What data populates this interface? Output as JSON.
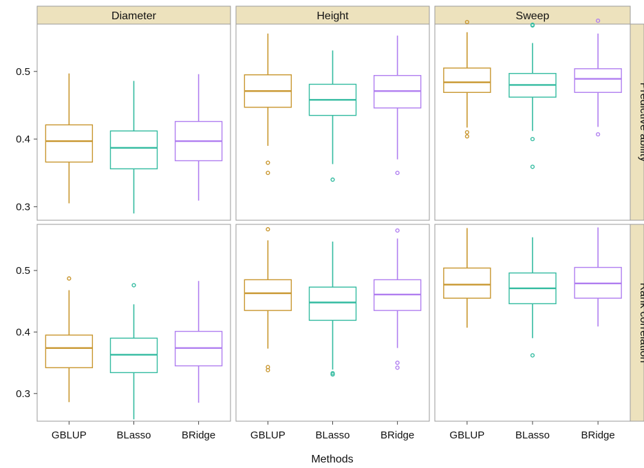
{
  "chart_data": {
    "type": "boxplot",
    "xlabel": "Methods",
    "ylabel": "",
    "categories": [
      "GBLUP",
      "BLasso",
      "BRidge"
    ],
    "colors": {
      "GBLUP": "#c8962e",
      "BLasso": "#33bba0",
      "BRidge": "#b07ef0"
    },
    "columns": [
      "Diameter",
      "Height",
      "Sweep"
    ],
    "rows": [
      "Predictive ability",
      "Rank correlation"
    ],
    "rows_config": [
      {
        "ylim": [
          0.28,
          0.57
        ],
        "yticks": [
          "0.3",
          "0.4",
          "0.5"
        ]
      },
      {
        "ylim": [
          0.255,
          0.575
        ],
        "yticks": [
          "0.3",
          "0.4",
          "0.5"
        ]
      }
    ],
    "panels": [
      {
        "row": "Predictive ability",
        "column": "Diameter",
        "boxes": [
          {
            "method": "GBLUP",
            "min": 0.305,
            "q1": 0.366,
            "median": 0.397,
            "q3": 0.421,
            "max": 0.497,
            "outliers": []
          },
          {
            "method": "BLasso",
            "min": 0.29,
            "q1": 0.356,
            "median": 0.387,
            "q3": 0.412,
            "max": 0.486,
            "outliers": []
          },
          {
            "method": "BRidge",
            "min": 0.309,
            "q1": 0.368,
            "median": 0.397,
            "q3": 0.426,
            "max": 0.496,
            "outliers": []
          }
        ]
      },
      {
        "row": "Predictive ability",
        "column": "Height",
        "boxes": [
          {
            "method": "GBLUP",
            "min": 0.39,
            "q1": 0.447,
            "median": 0.471,
            "q3": 0.495,
            "max": 0.556,
            "outliers": [
              0.365,
              0.35
            ]
          },
          {
            "method": "BLasso",
            "min": 0.363,
            "q1": 0.435,
            "median": 0.458,
            "q3": 0.481,
            "max": 0.531,
            "outliers": [
              0.34
            ]
          },
          {
            "method": "BRidge",
            "min": 0.37,
            "q1": 0.446,
            "median": 0.471,
            "q3": 0.494,
            "max": 0.553,
            "outliers": [
              0.35
            ]
          }
        ]
      },
      {
        "row": "Predictive ability",
        "column": "Sweep",
        "boxes": [
          {
            "method": "GBLUP",
            "min": 0.417,
            "q1": 0.469,
            "median": 0.484,
            "q3": 0.505,
            "max": 0.558,
            "outliers": [
              0.573,
              0.41,
              0.404
            ]
          },
          {
            "method": "BLasso",
            "min": 0.412,
            "q1": 0.462,
            "median": 0.48,
            "q3": 0.497,
            "max": 0.542,
            "outliers": [
              0.569,
              0.568,
              0.4,
              0.359
            ]
          },
          {
            "method": "BRidge",
            "min": 0.418,
            "q1": 0.469,
            "median": 0.489,
            "q3": 0.504,
            "max": 0.556,
            "outliers": [
              0.575,
              0.407
            ]
          }
        ]
      },
      {
        "row": "Rank correlation",
        "column": "Diameter",
        "boxes": [
          {
            "method": "GBLUP",
            "min": 0.286,
            "q1": 0.342,
            "median": 0.374,
            "q3": 0.395,
            "max": 0.468,
            "outliers": [
              0.487
            ]
          },
          {
            "method": "BLasso",
            "min": 0.258,
            "q1": 0.334,
            "median": 0.363,
            "q3": 0.39,
            "max": 0.445,
            "outliers": [
              0.476
            ]
          },
          {
            "method": "BRidge",
            "min": 0.285,
            "q1": 0.345,
            "median": 0.374,
            "q3": 0.401,
            "max": 0.483,
            "outliers": []
          }
        ]
      },
      {
        "row": "Rank correlation",
        "column": "Height",
        "boxes": [
          {
            "method": "GBLUP",
            "min": 0.373,
            "q1": 0.435,
            "median": 0.463,
            "q3": 0.485,
            "max": 0.549,
            "outliers": [
              0.567,
              0.343,
              0.338
            ]
          },
          {
            "method": "BLasso",
            "min": 0.339,
            "q1": 0.419,
            "median": 0.448,
            "q3": 0.473,
            "max": 0.547,
            "outliers": [
              0.333,
              0.331
            ]
          },
          {
            "method": "BRidge",
            "min": 0.374,
            "q1": 0.435,
            "median": 0.461,
            "q3": 0.485,
            "max": 0.552,
            "outliers": [
              0.565,
              0.35,
              0.342
            ]
          }
        ]
      },
      {
        "row": "Rank correlation",
        "column": "Sweep",
        "boxes": [
          {
            "method": "GBLUP",
            "min": 0.407,
            "q1": 0.455,
            "median": 0.477,
            "q3": 0.504,
            "max": 0.569,
            "outliers": []
          },
          {
            "method": "BLasso",
            "min": 0.39,
            "q1": 0.446,
            "median": 0.471,
            "q3": 0.496,
            "max": 0.554,
            "outliers": [
              0.362
            ]
          },
          {
            "method": "BRidge",
            "min": 0.409,
            "q1": 0.455,
            "median": 0.479,
            "q3": 0.505,
            "max": 0.57,
            "outliers": []
          }
        ]
      }
    ]
  }
}
